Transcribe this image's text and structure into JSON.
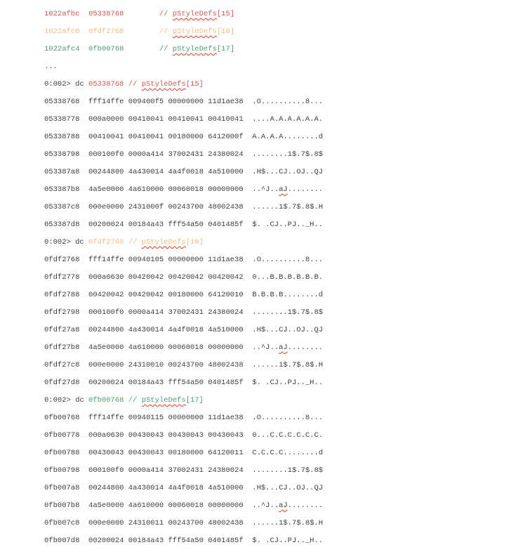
{
  "terminal": {
    "background": "#ffffff",
    "text_color": "#3e3e3e",
    "prompt": "0:002>",
    "command": "dc",
    "comment_prefix": "//",
    "colors": {
      "red": "#cd5b54",
      "orange": "#f2bc83",
      "green": "#4f9e6f",
      "squiggle": "#e03a2a"
    }
  },
  "pointer_table": {
    "ellipsis": "...",
    "rows": [
      {
        "address": "1022afbc",
        "value": "05338768",
        "symbol": "pStyleDefs",
        "index": "[15]",
        "color": "red"
      },
      {
        "address": "1022afc0",
        "value": "0fdf2768",
        "symbol": "pStyleDefs",
        "index": "[16]",
        "color": "orange"
      },
      {
        "address": "1022afc4",
        "value": "0fb00768",
        "symbol": "pStyleDefs",
        "index": "[17]",
        "color": "green"
      }
    ]
  },
  "dump_blocks": [
    {
      "target": "05338768",
      "symbol": "pStyleDefs",
      "index": "[15]",
      "color": "red",
      "rows": [
        {
          "address": "05338768",
          "hex": [
            "fff14ffe",
            "009400f5",
            "00000000",
            "11d1ae38"
          ],
          "ascii": ".O..........8..."
        },
        {
          "address": "05338778",
          "hex": [
            "000a0000",
            "00410041",
            "00410041",
            "00410041"
          ],
          "ascii": "....A.A.A.A.A.A."
        },
        {
          "address": "05338788",
          "hex": [
            "00410041",
            "00410041",
            "00180000",
            "6412000f"
          ],
          "ascii": "A.A.A.A........d"
        },
        {
          "address": "05338798",
          "hex": [
            "000100f0",
            "0000a414",
            "37002431",
            "24380024"
          ],
          "ascii": "........1$.7$.8$"
        },
        {
          "address": "053387a8",
          "hex": [
            "00244800",
            "4a430014",
            "4a4f0018",
            "4a510000"
          ],
          "ascii": ".H$...CJ..OJ..QJ"
        },
        {
          "address": "053387b8",
          "hex": [
            "4a5e0000",
            "4a610000",
            "00060018",
            "00000000"
          ],
          "ascii": "..^J..aJ........",
          "misspelled": "aJ"
        },
        {
          "address": "053387c8",
          "hex": [
            "000e0000",
            "2431000f",
            "00243700",
            "48002438"
          ],
          "ascii": "......1$.7$.8$.H"
        },
        {
          "address": "053387d8",
          "hex": [
            "00200024",
            "00184a43",
            "fff54a50",
            "0401485f"
          ],
          "ascii": "$. .CJ..PJ.._H.."
        }
      ]
    },
    {
      "target": "0fdf2768",
      "symbol": "pStyleDefs",
      "index": "[16]",
      "color": "orange",
      "rows": [
        {
          "address": "0fdf2768",
          "hex": [
            "fff14ffe",
            "00940105",
            "00000000",
            "11d1ae38"
          ],
          "ascii": ".O..........8..."
        },
        {
          "address": "0fdf2778",
          "hex": [
            "000a0630",
            "00420042",
            "00420042",
            "00420042"
          ],
          "ascii": "0...B.B.B.B.B.B."
        },
        {
          "address": "0fdf2788",
          "hex": [
            "00420042",
            "00420042",
            "00180000",
            "64120010"
          ],
          "ascii": "B.B.B.B........d"
        },
        {
          "address": "0fdf2798",
          "hex": [
            "000100f0",
            "0000a414",
            "37002431",
            "24380024"
          ],
          "ascii": "........1$.7$.8$"
        },
        {
          "address": "0fdf27a8",
          "hex": [
            "00244800",
            "4a430014",
            "4a4f0018",
            "4a510000"
          ],
          "ascii": ".H$...CJ..OJ..QJ"
        },
        {
          "address": "0fdf27b8",
          "hex": [
            "4a5e0000",
            "4a610000",
            "00060018",
            "00000000"
          ],
          "ascii": "..^J..aJ........",
          "misspelled": "aJ"
        },
        {
          "address": "0fdf27c8",
          "hex": [
            "000e0000",
            "24310010",
            "00243700",
            "48002438"
          ],
          "ascii": "......1$.7$.8$.H"
        },
        {
          "address": "0fdf27d8",
          "hex": [
            "00200024",
            "00184a43",
            "fff54a50",
            "0401485f"
          ],
          "ascii": "$. .CJ..PJ.._H.."
        }
      ]
    },
    {
      "target": "0fb00768",
      "symbol": "pStyleDefs",
      "index": "[17]",
      "color": "green",
      "rows": [
        {
          "address": "0fb00768",
          "hex": [
            "fff14ffe",
            "00940115",
            "00000000",
            "11d1ae38"
          ],
          "ascii": ".O..........8..."
        },
        {
          "address": "0fb00778",
          "hex": [
            "000a0630",
            "00430043",
            "00430043",
            "00430043"
          ],
          "ascii": "0...C.C.C.C.C.C."
        },
        {
          "address": "0fb00788",
          "hex": [
            "00430043",
            "00430043",
            "00180000",
            "64120011"
          ],
          "ascii": "C.C.C.C........d"
        },
        {
          "address": "0fb00798",
          "hex": [
            "000100f0",
            "0000a414",
            "37002431",
            "24380024"
          ],
          "ascii": "........1$.7$.8$"
        },
        {
          "address": "0fb007a8",
          "hex": [
            "00244800",
            "4a430014",
            "4a4f0018",
            "4a510000"
          ],
          "ascii": ".H$...CJ..OJ..QJ"
        },
        {
          "address": "0fb007b8",
          "hex": [
            "4a5e0000",
            "4a610000",
            "00060018",
            "00000000"
          ],
          "ascii": "..^J..aJ........",
          "misspelled": "aJ"
        },
        {
          "address": "0fb007c8",
          "hex": [
            "000e0000",
            "24310011",
            "00243700",
            "48002438"
          ],
          "ascii": "......1$.7$.8$.H"
        },
        {
          "address": "0fb007d8",
          "hex": [
            "00200024",
            "00184a43",
            "fff54a50",
            "0401485f"
          ],
          "ascii": "$. .CJ..PJ.._H.."
        }
      ]
    }
  ]
}
